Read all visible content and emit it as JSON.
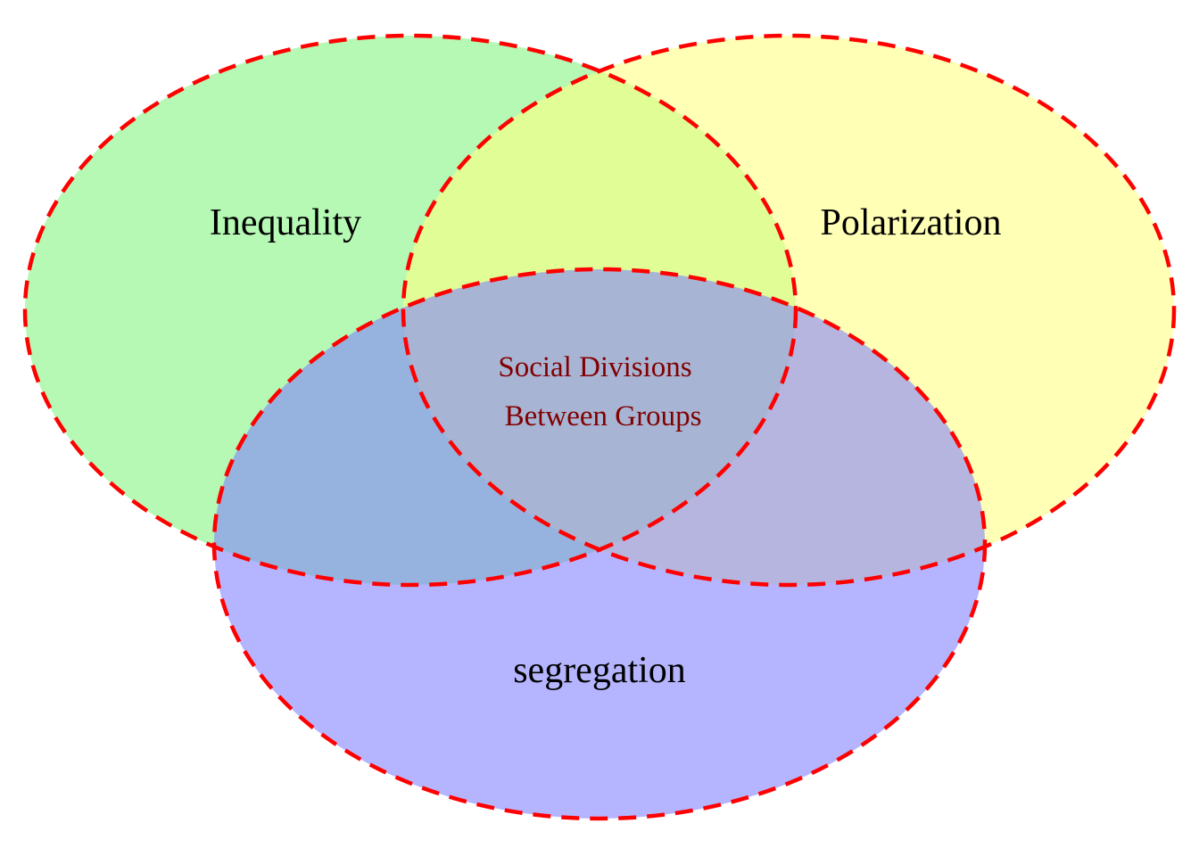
{
  "diagram": {
    "type": "venn",
    "outline_color": "#ff0000",
    "sets": [
      {
        "id": "inequality",
        "label": "Inequality",
        "fill": "#7ff57f"
      },
      {
        "id": "polarization",
        "label": "Polarization",
        "fill": "#ffff80"
      },
      {
        "id": "segregation",
        "label": "segregation",
        "fill": "#7f7fff"
      }
    ],
    "intersection": {
      "label_line1": "Social Divisions",
      "label_line2": "Between Groups",
      "text_color": "#800000"
    }
  }
}
